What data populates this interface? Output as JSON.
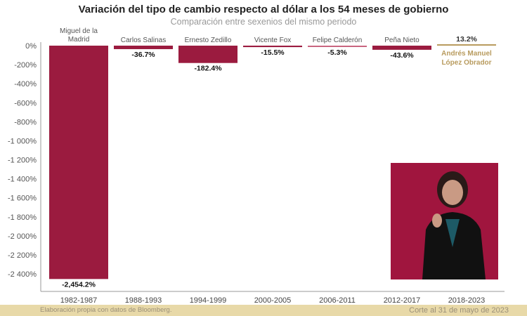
{
  "chart_data": {
    "type": "bar",
    "title": "Variación del tipo de cambio respecto al dólar a los 54 meses de gobierno",
    "subtitle": "Comparación entre sexenios del mismo periodo",
    "categories": [
      "1982-1987",
      "1988-1993",
      "1994-1999",
      "2000-2005",
      "2006-2011",
      "2012-2017",
      "2018-2023"
    ],
    "names": [
      "Miguel de la Madrid",
      "Carlos Salinas",
      "Ernesto Zedillo",
      "Vicente Fox",
      "Felipe Calderón",
      "Peña Nieto",
      "Andrés Manuel López Obrador"
    ],
    "values": [
      -2454.2,
      -36.7,
      -182.4,
      -15.5,
      -5.3,
      -43.6,
      13.2
    ],
    "data_labels": [
      "-2,454.2%",
      "-36.7%",
      "-182.4%",
      "-15.5%",
      "-5.3%",
      "-43.6%",
      "13.2%"
    ],
    "ylim": [
      -2400,
      0
    ],
    "yticks": [
      0,
      -200,
      -400,
      -600,
      -800,
      -1000,
      -1200,
      -1400,
      -1600,
      -1800,
      -2000,
      -2200,
      -2400
    ],
    "ytick_labels": [
      "0%",
      "-200%",
      "-400%",
      "-600%",
      "-800%",
      "-1 000%",
      "-1 200%",
      "-1 400%",
      "-1 600%",
      "-1 800%",
      "-2 000%",
      "-2 200%",
      "-2 400%"
    ],
    "colors": {
      "negative": "#9b1b3f",
      "calderon": "#c9657f",
      "positive": "#b89b5e"
    },
    "grid": false
  },
  "footer": {
    "source": "Elaboración propia con datos de Bloomberg.",
    "cutoff": "Corte al 31 de mayo de 2023"
  }
}
